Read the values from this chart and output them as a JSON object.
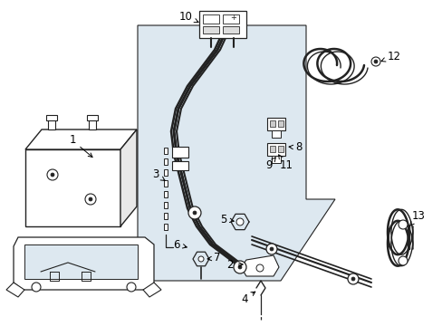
{
  "background_color": "#ffffff",
  "shaded_region_color": "#dde8f0",
  "line_color": "#222222",
  "figsize": [
    4.89,
    3.6
  ],
  "dpi": 100
}
